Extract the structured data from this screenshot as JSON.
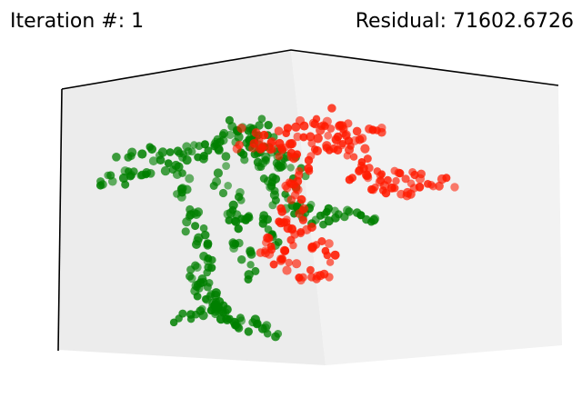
{
  "header": {
    "iteration_label": "Iteration #:",
    "iteration_value": "1",
    "residual_label": "Residual:",
    "residual_value": "71602.6726"
  },
  "colors": {
    "source": "#008000",
    "target": "#ff1a00",
    "pane_left": "#ececec",
    "pane_right": "#f2f2f2",
    "axis_line": "#000000"
  },
  "chart_data": {
    "type": "scatter",
    "projection": "3d",
    "title": "",
    "grid": false,
    "series": [
      {
        "color": "#008000",
        "point_cloud": "source"
      },
      {
        "color": "#ff1a00",
        "point_cloud": "target"
      }
    ]
  }
}
